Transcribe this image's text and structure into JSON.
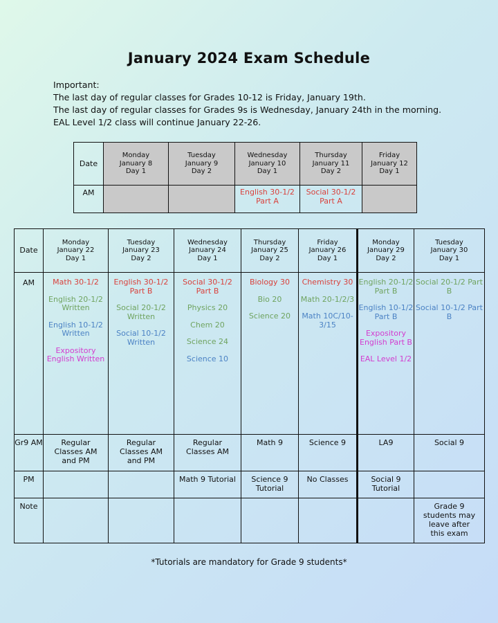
{
  "title": "January 2024 Exam Schedule",
  "important": {
    "heading": "Important:",
    "lines": [
      "The last day of regular classes for Grades 10-12 is Friday, January 19th.",
      "The last day of regular classes for Grades 9s is Wednesday, January 24th in the morning.",
      "EAL Level 1/2 class will continue January 22-26."
    ]
  },
  "table1": {
    "date_label": "Date",
    "am_label": "AM",
    "days": [
      {
        "day": "Monday",
        "date": "January 8",
        "cycle": "Day 1"
      },
      {
        "day": "Tuesday",
        "date": "January 9",
        "cycle": "Day 2"
      },
      {
        "day": "Wednesday",
        "date": "January 10",
        "cycle": "Day 1"
      },
      {
        "day": "Thursday",
        "date": "January 11",
        "cycle": "Day 2"
      },
      {
        "day": "Friday",
        "date": "January 12",
        "cycle": "Day 1"
      }
    ],
    "am": [
      [],
      [],
      [
        "English 30-1/2",
        "Part A"
      ],
      [
        "Social 30-1/2",
        "Part A"
      ],
      []
    ]
  },
  "table2": {
    "date_label": "Date",
    "am_label": "AM",
    "gr9_label": "Gr9 AM",
    "pm_label": "PM",
    "note_label": "Note",
    "days": [
      {
        "day": "Monday",
        "date": "January 22",
        "cycle": "Day 1"
      },
      {
        "day": "Tuesday",
        "date": "January 23",
        "cycle": "Day 2"
      },
      {
        "day": "Wednesday",
        "date": "January 24",
        "cycle": "Day 1"
      },
      {
        "day": "Thursday",
        "date": "January 25",
        "cycle": "Day 2"
      },
      {
        "day": "Friday",
        "date": "January 26",
        "cycle": "Day 1"
      },
      {
        "day": "Monday",
        "date": "January 29",
        "cycle": "Day 2"
      },
      {
        "day": "Tuesday",
        "date": "January 30",
        "cycle": "Day 1"
      }
    ],
    "am": [
      [
        {
          "t": "Math 30-1/2",
          "c": "r"
        },
        {
          "t": "English 20-1/2 Written",
          "c": "g"
        },
        {
          "t": "English 10-1/2 Written",
          "c": "b"
        },
        {
          "t": "Expository English Written",
          "c": "m"
        }
      ],
      [
        {
          "t": "English 30-1/2 Part B",
          "c": "r"
        },
        {
          "t": "Social 20-1/2 Written",
          "c": "g"
        },
        {
          "t": "Social 10-1/2 Written",
          "c": "b"
        }
      ],
      [
        {
          "t": "Social 30-1/2 Part B",
          "c": "r"
        },
        {
          "t": "Physics 20",
          "c": "g"
        },
        {
          "t": "Chem 20",
          "c": "g"
        },
        {
          "t": "Science 24",
          "c": "g"
        },
        {
          "t": "Science 10",
          "c": "b"
        }
      ],
      [
        {
          "t": "Biology 30",
          "c": "r"
        },
        {
          "t": "Bio 20",
          "c": "g"
        },
        {
          "t": "Science 20",
          "c": "g"
        }
      ],
      [
        {
          "t": "Chemistry 30",
          "c": "r"
        },
        {
          "t": "Math 20-1/2/3",
          "c": "g"
        },
        {
          "t": "Math 10C/10-3/15",
          "c": "b"
        }
      ],
      [
        {
          "t": "English 20-1/2 Part B",
          "c": "g"
        },
        {
          "t": "English 10-1/2 Part B",
          "c": "b"
        },
        {
          "t": "Expository English Part B",
          "c": "m"
        },
        {
          "t": "EAL Level 1/2",
          "c": "m"
        }
      ],
      [
        {
          "t": "Social 20-1/2 Part B",
          "c": "g"
        },
        {
          "t": "Social 10-1/2 Part B",
          "c": "b"
        }
      ]
    ],
    "gr9": [
      "Regular Classes AM and PM",
      "Regular Classes AM and PM",
      "Regular Classes AM",
      "Math 9",
      "Science 9",
      "LA9",
      "Social 9"
    ],
    "pm": [
      "",
      "",
      "Math 9 Tutorial",
      "Science 9 Tutorial",
      "No Classes",
      "Social 9 Tutorial",
      ""
    ],
    "note": [
      "",
      "",
      "",
      "",
      "",
      "",
      "Grade 9 students may leave after this exam"
    ]
  },
  "footer": "*Tutorials are mandatory for Grade 9 students*",
  "colors": {
    "senior": "#d9413c",
    "grade11": "#6fa35f",
    "grade10": "#4b82c4",
    "expository": "#d33ccf",
    "unavailable": "#c9c9c9"
  }
}
